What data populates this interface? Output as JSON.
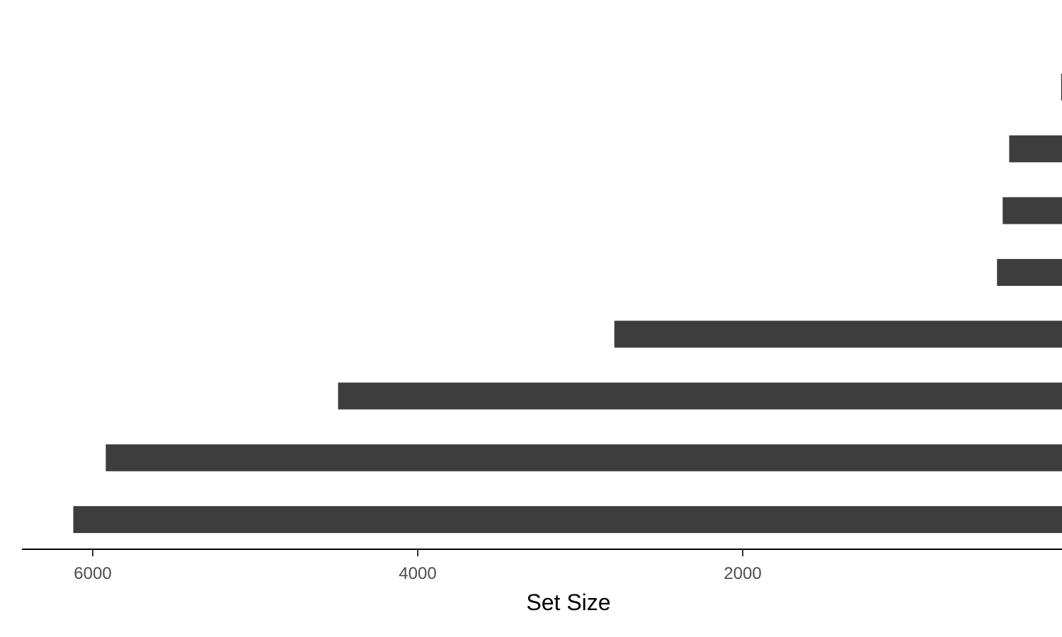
{
  "chart_data": {
    "type": "bar",
    "orientation": "horizontal",
    "x_direction": "reversed",
    "title": "",
    "xlabel": "Set Size",
    "ylabel": "",
    "xlim": [
      0,
      6400
    ],
    "xticks": [
      6000,
      4000,
      2000
    ],
    "xtick_labels": [
      "6000",
      "4000",
      "2000"
    ],
    "values": [
      40,
      360,
      400,
      435,
      2790,
      4490,
      5920,
      6120
    ],
    "bar_color": "#3d3d3d",
    "grid": false,
    "legend": "none"
  }
}
